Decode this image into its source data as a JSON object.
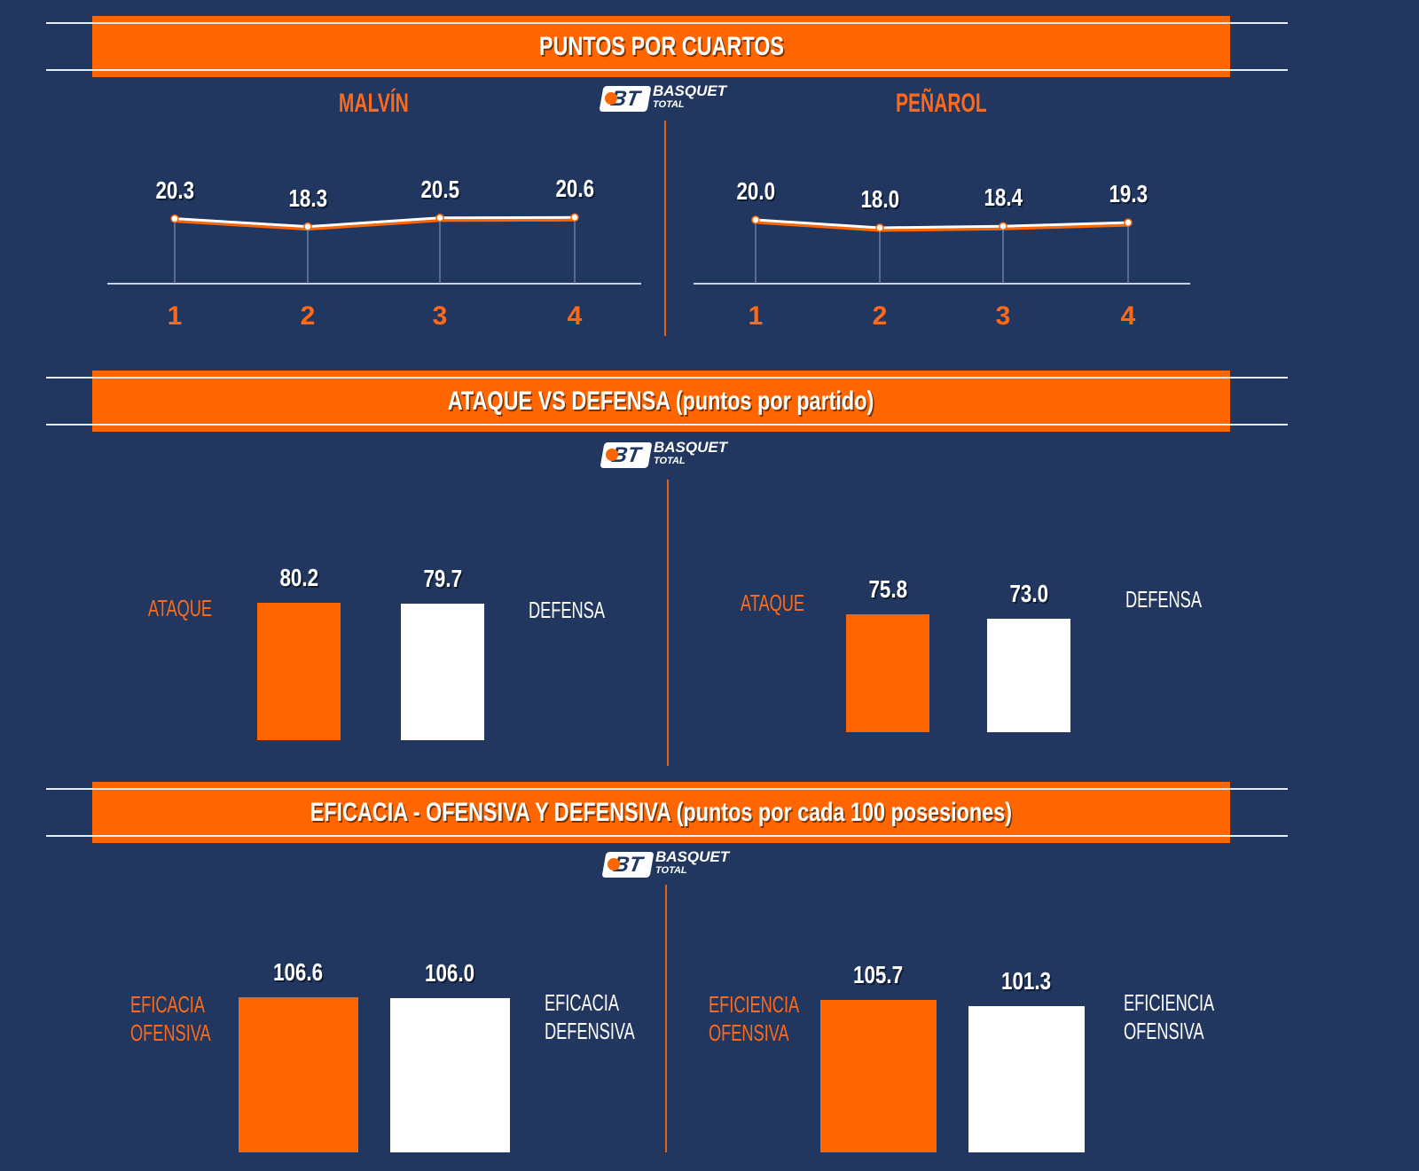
{
  "logo": {
    "mark": "BT",
    "line1": "BASQUET",
    "line2": "TOTAL"
  },
  "colors": {
    "background": "#22375f",
    "accent": "#ff6600",
    "secondary": "#ffffff"
  },
  "sections": [
    {
      "title": "PUNTOS POR CUARTOS"
    },
    {
      "title": "ATAQUE VS DEFENSA (puntos por partido)"
    },
    {
      "title": "EFICACIA - OFENSIVA Y DEFENSIVA (puntos por cada 100 posesiones)"
    }
  ],
  "chart_data": [
    {
      "type": "line",
      "title": "MALVÍN",
      "categories": [
        "1",
        "2",
        "3",
        "4"
      ],
      "values": [
        20.3,
        18.3,
        20.5,
        20.6
      ],
      "labels": [
        "20.3",
        "18.3",
        "20.5",
        "20.6"
      ]
    },
    {
      "type": "line",
      "title": "PEÑAROL",
      "categories": [
        "1",
        "2",
        "3",
        "4"
      ],
      "values": [
        20.0,
        18.0,
        18.4,
        19.3
      ],
      "labels": [
        "20.0",
        "18.0",
        "18.4",
        "19.3"
      ]
    },
    {
      "type": "bar",
      "categories": [
        "ATAQUE",
        "DEFENSA"
      ],
      "values": [
        80.2,
        79.7
      ],
      "labels": [
        "80.2",
        "79.7"
      ],
      "colors": [
        "#ff6600",
        "#ffffff"
      ]
    },
    {
      "type": "bar",
      "categories": [
        "ATAQUE",
        "DEFENSA"
      ],
      "values": [
        75.8,
        73.0
      ],
      "labels": [
        "75.8",
        "73.0"
      ],
      "colors": [
        "#ff6600",
        "#ffffff"
      ]
    },
    {
      "type": "bar",
      "categories": [
        "EFICACIA OFENSIVA",
        "EFICACIA DEFENSIVA"
      ],
      "values": [
        106.6,
        106.0
      ],
      "labels": [
        "106.6",
        "106.0"
      ],
      "colors": [
        "#ff6600",
        "#ffffff"
      ]
    },
    {
      "type": "bar",
      "categories": [
        "EFICIENCIA OFENSIVA",
        "EFICIENCIA OFENSIVA"
      ],
      "values": [
        105.7,
        101.3
      ],
      "labels": [
        "105.7",
        "101.3"
      ],
      "colors": [
        "#ff6600",
        "#ffffff"
      ]
    }
  ]
}
